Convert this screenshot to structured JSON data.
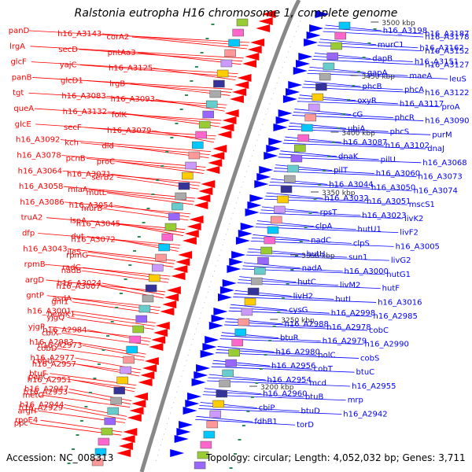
{
  "title": "Ralstonia eutropha H16 chromosome 1, complete genome",
  "footer": {
    "accession": "Accession: NC_008313",
    "summary": "Topology: circular; Length: 4,052,032 bp; Genes: 3,711"
  },
  "colors": {
    "forward": "#ff0000",
    "reverse": "#0000ff",
    "backbone": "#888888"
  },
  "kbp_ticks": [
    "3500 kbp",
    "3450 kbp",
    "3400 kbp",
    "3350 kbp",
    "3300 kbp",
    "3250 kbp",
    "3200 kbp"
  ],
  "left_labels": [
    "panD",
    "h16_A3143",
    "corA2",
    "lrgA",
    "secD",
    "pntAa3",
    "glcF",
    "yajC",
    "h16_A3125",
    "panB",
    "glcD1",
    "lrgB",
    "tgt",
    "h16_A3083",
    "h16_A3093",
    "queA",
    "h16_A3132",
    "folK",
    "glcE",
    "secF",
    "h16_A3079",
    "h16_A3092",
    "kch",
    "dld",
    "h16_A3078",
    "pcnB",
    "proC",
    "h16_A3064",
    "h16_A3071",
    "serB2",
    "h16_A3058",
    "miaA",
    "mutL",
    "h16_A3086",
    "h16_A3054",
    "murB",
    "truA2",
    "lspA",
    "h16_A3045",
    "dfp",
    "dut",
    "h16_A3072",
    "h16_A3043",
    "ileS",
    "rpmG",
    "rpmB",
    "radC",
    "nadB",
    "argD",
    "h16_A3024",
    "h16_A3007",
    "gntP",
    "asdA",
    "gnl1",
    "h16_A3001",
    "hemK1",
    "yjgQ",
    "yjgP",
    "h16_A2984",
    "cbiX",
    "h16_A2983",
    "h16_A2973",
    "cobD",
    "h16_A2977",
    "cobU",
    "h16_A2957",
    "btuF",
    "panC",
    "h16_A2951",
    "h16_A2947",
    "h16_A2953",
    "metG",
    "h16_A2944",
    "h16_A2929",
    "argH",
    "rpoE4",
    "ppc"
  ],
  "right_labels": [
    "h16_A3198",
    "h16_A3187",
    "h16_A3178",
    "murC1",
    "h16_A3162",
    "h16_A3152",
    "dapB",
    "h16_A3151",
    "h16_A3127",
    "gapA",
    "maeA",
    "leuS",
    "phcB",
    "phcA",
    "h16_A3122",
    "oxyR",
    "h16_A3117",
    "proA",
    "cG",
    "phcR",
    "h16_A3090",
    "ubiA",
    "phcS",
    "purM",
    "h16_A3087",
    "h16_A3102",
    "dnaJ",
    "dnaK",
    "pilU",
    "h16_A3068",
    "pilT",
    "h16_A3060",
    "h16_A3073",
    "h16_A3044",
    "h16_A3050",
    "h16_A3074",
    "h16_A3032",
    "h16_A3051",
    "mscS1",
    "rpsT",
    "h16_A3023",
    "livK2",
    "clpA",
    "hutU1",
    "livF2",
    "nadC",
    "clpS",
    "h16_A3005",
    "hutH",
    "sun1",
    "livG2",
    "nadA",
    "h16_A3000",
    "hutG1",
    "hutC",
    "livM2",
    "hutF",
    "livH2",
    "hutI",
    "h16_A3016",
    "cysG",
    "h16_A2998",
    "h16_A2985",
    "h16_A2988",
    "h16_A2978",
    "cobC",
    "btuR",
    "h16_A2979",
    "h16_A2990",
    "h16_A2980",
    "holC",
    "cobS",
    "h16_A2956",
    "cobT",
    "btuC",
    "h16_A2954",
    "mcd",
    "h16_A2955",
    "h16_A2960",
    "btuB",
    "mrp",
    "cbiP",
    "btuD",
    "h16_A2942",
    "fdhB1",
    "torD"
  ]
}
